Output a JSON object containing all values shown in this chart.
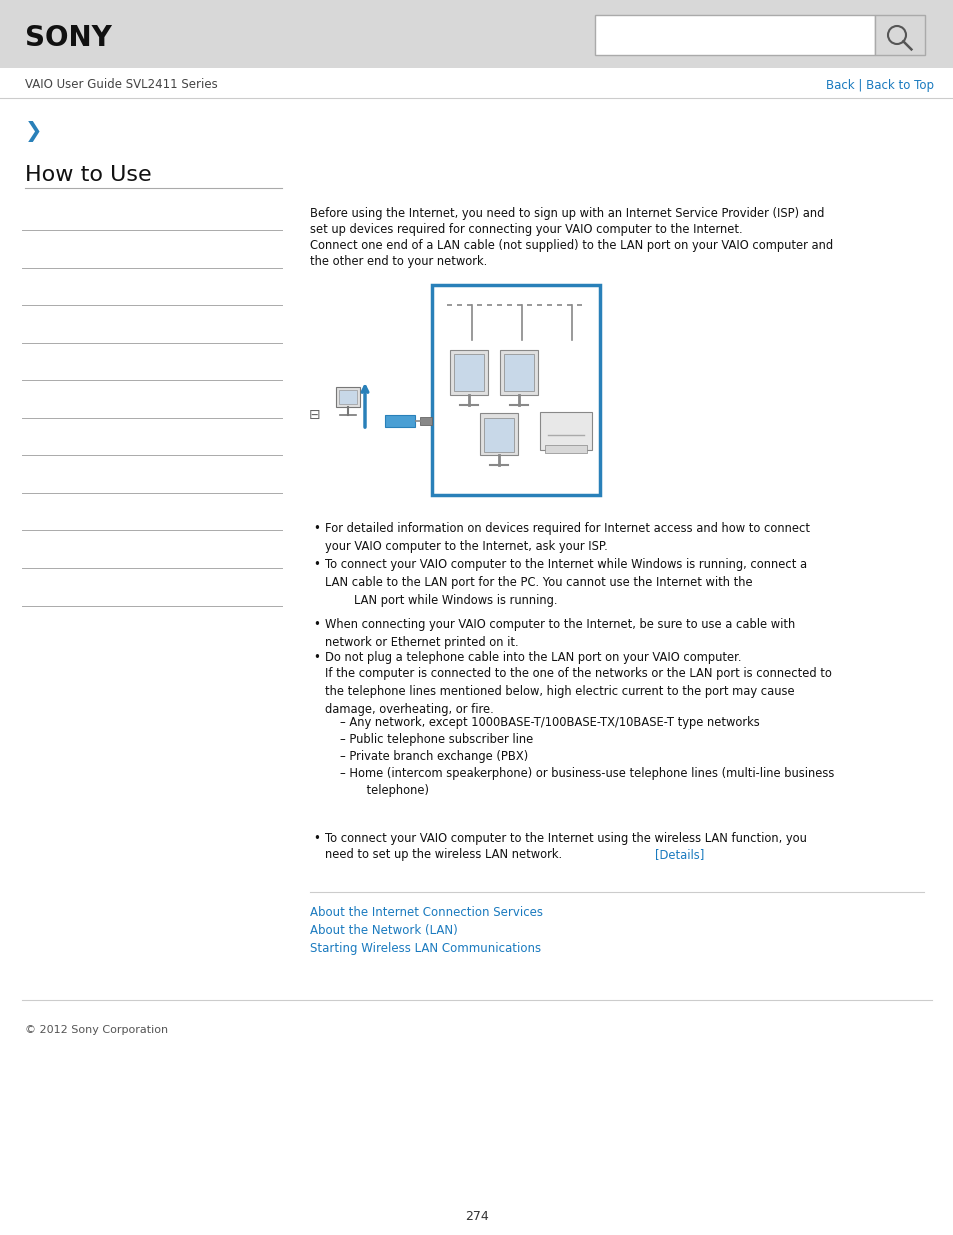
{
  "bg_color": "#ffffff",
  "header_bg": "#d8d8d8",
  "sony_text": "SONY",
  "nav_text": "VAIO User Guide SVL2411 Series",
  "back_text": "Back | Back to Top",
  "back_color": "#1a7abf",
  "arrow_color": "#2980b9",
  "title": "How to Use",
  "title_fontsize": 16,
  "body_text_1a": "Before using the Internet, you need to sign up with an Internet Service Provider (ISP) and",
  "body_text_1b": "set up devices required for connecting your VAIO computer to the Internet.",
  "body_text_1c": "Connect one end of a LAN cable (not supplied) to the LAN port on your VAIO computer and",
  "body_text_1d": "the other end to your network.",
  "bullet1": "For detailed information on devices required for Internet access and how to connect\nyour VAIO computer to the Internet, ask your ISP.",
  "bullet2": "To connect your VAIO computer to the Internet while Windows is running, connect a\nLAN cable to the LAN port for the PC. You cannot use the Internet with the\n        LAN port while Windows is running.",
  "bullet3": "When connecting your VAIO computer to the Internet, be sure to use a cable with\nnetwork or Ethernet printed on it.",
  "bullet4a": "Do not plug a telephone cable into the LAN port on your VAIO computer.",
  "bullet4b": "If the computer is connected to the one of the networks or the LAN port is connected to\nthe telephone lines mentioned below, high electric current to the port may cause\ndamage, overheating, or fire.",
  "sub1": "– Any network, except 1000BASE-T/100BASE-TX/10BASE-T type networks",
  "sub2": "– Public telephone subscriber line",
  "sub3": "– Private branch exchange (PBX)",
  "sub4a": "– Home (intercom speakerphone) or business-use telephone lines (multi-line business",
  "sub4b": "    telephone)",
  "bullet5a": "To connect your VAIO computer to the Internet using the wireless LAN function, you",
  "bullet5b": "need to set up the wireless LAN network. ",
  "bullet5_details": "[Details]",
  "details_color": "#1a7abf",
  "link1": "About the Internet Connection Services",
  "link2": "About the Network (LAN)",
  "link3": "Starting Wireless LAN Communications",
  "link_color": "#1a7abf",
  "footer_text": "© 2012 Sony Corporation",
  "page_num": "274"
}
